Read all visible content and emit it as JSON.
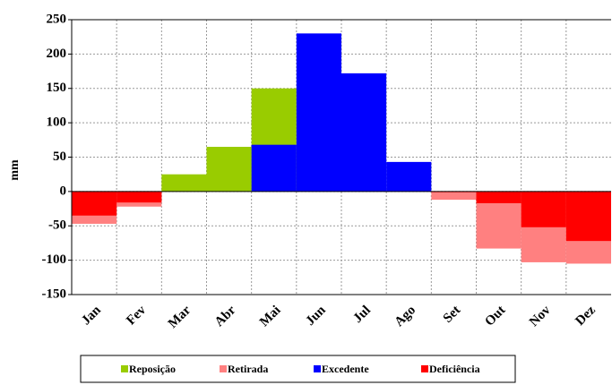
{
  "chart_data": {
    "type": "bar",
    "y_label": "mm",
    "categories": [
      "Jan",
      "Fev",
      "Mar",
      "Abr",
      "Mai",
      "Jun",
      "Jul",
      "Ago",
      "Set",
      "Out",
      "Nov",
      "Dez"
    ],
    "series": [
      {
        "name": "Reposição",
        "color": "#99cc00",
        "values": [
          0,
          0,
          25,
          65,
          150,
          0,
          0,
          0,
          0,
          0,
          0,
          0
        ]
      },
      {
        "name": "Retirada",
        "color": "#ff8080",
        "values": [
          -47,
          -22,
          0,
          0,
          0,
          0,
          0,
          0,
          -12,
          -83,
          -103,
          -105
        ]
      },
      {
        "name": "Excedente",
        "color": "#0000ff",
        "values": [
          0,
          0,
          0,
          0,
          68,
          230,
          172,
          43,
          0,
          0,
          0,
          0
        ]
      },
      {
        "name": "Deficiência",
        "color": "#ff0000",
        "values": [
          -35,
          -16,
          0,
          0,
          0,
          0,
          0,
          0,
          -1,
          -17,
          -52,
          -72
        ]
      }
    ],
    "ylim": [
      -150,
      250
    ],
    "yticks": [
      -150,
      -100,
      -50,
      0,
      50,
      100,
      150,
      200,
      250
    ],
    "grid": true
  }
}
